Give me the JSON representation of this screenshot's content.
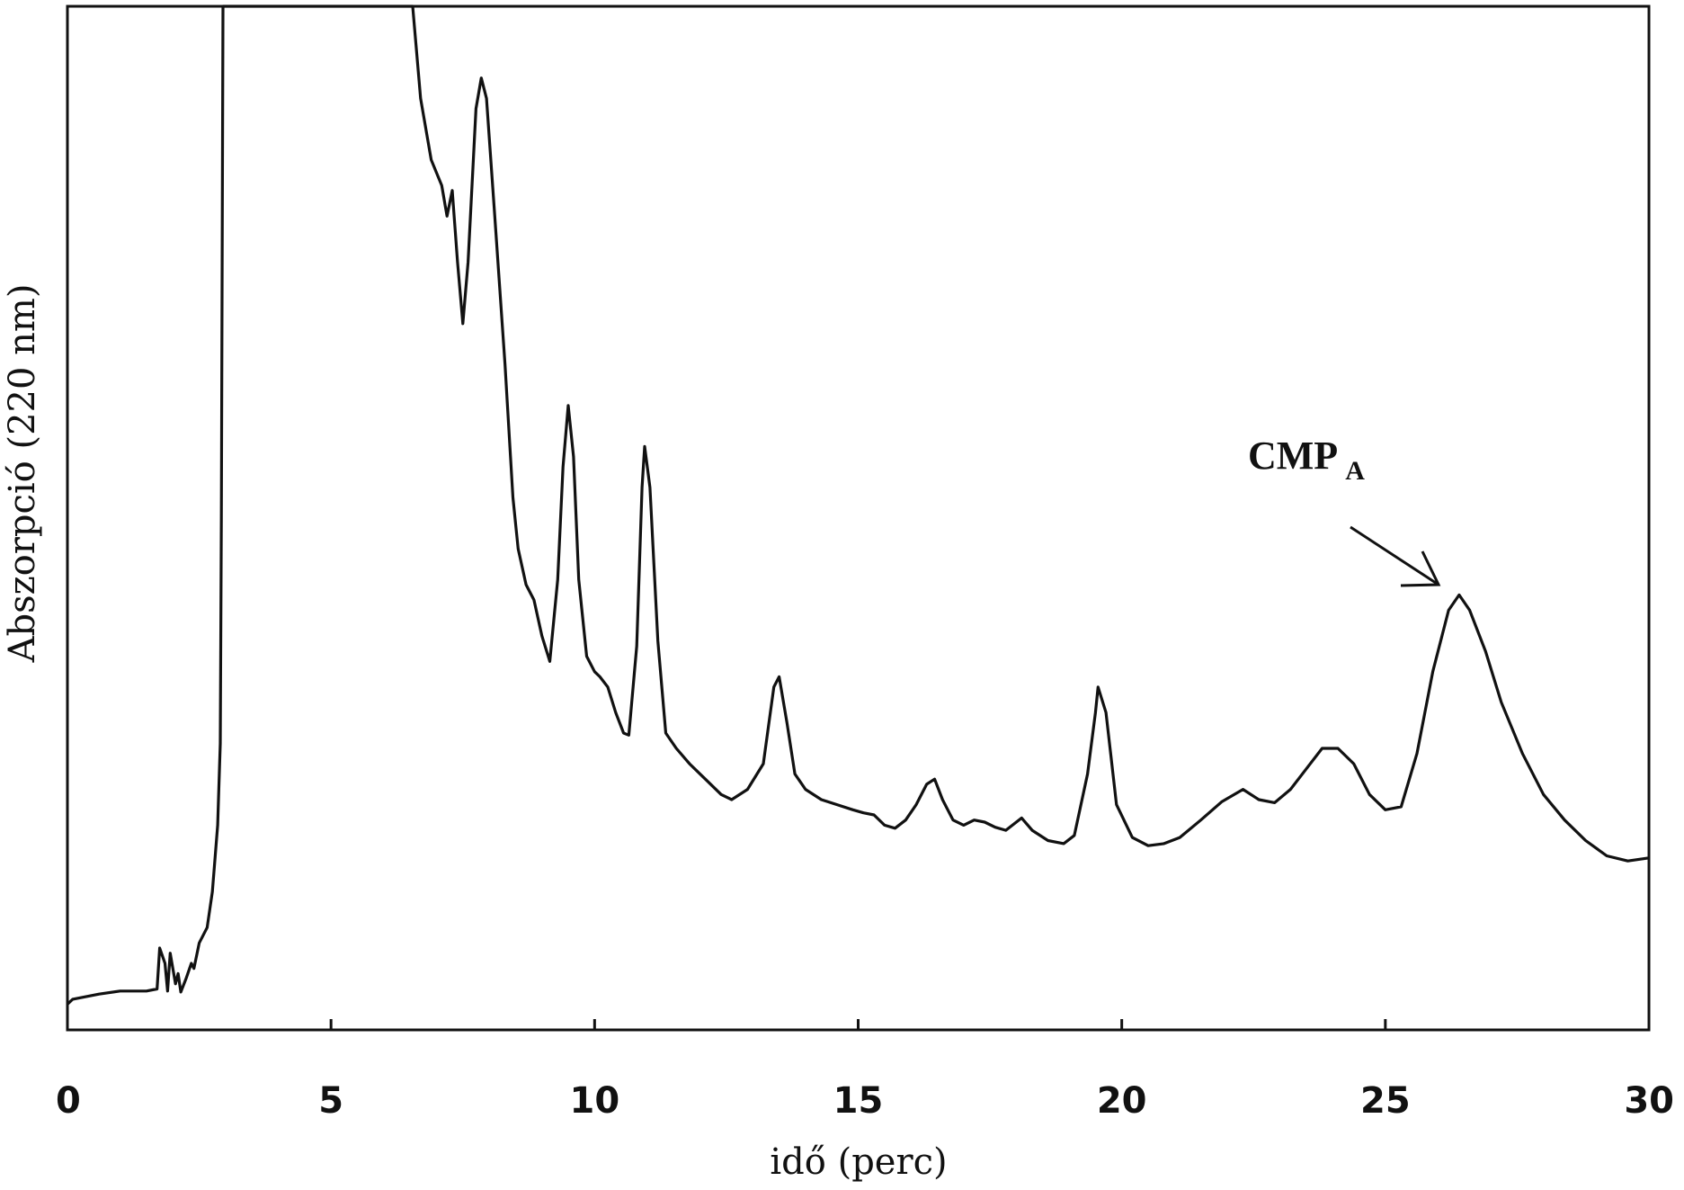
{
  "chart_data": {
    "type": "line",
    "xlabel": "idő (perc)",
    "ylabel": "Abszorpció (220 nm)",
    "xlim": [
      0,
      30
    ],
    "ylim": [
      0,
      100
    ],
    "x_ticks": [
      "0",
      "5",
      "10",
      "15",
      "20",
      "25",
      "30"
    ],
    "y_ticks_shown": false,
    "grid": false,
    "series": [
      {
        "points": [
          [
            0,
            2.5
          ],
          [
            0.1,
            3.0
          ],
          [
            0.6,
            3.5
          ],
          [
            1.0,
            3.8
          ],
          [
            1.5,
            3.8
          ],
          [
            1.7,
            4.0
          ],
          [
            1.75,
            8.0
          ],
          [
            1.85,
            6.5
          ],
          [
            1.9,
            3.8
          ],
          [
            1.95,
            7.5
          ],
          [
            2.05,
            4.5
          ],
          [
            2.1,
            5.5
          ],
          [
            2.15,
            3.7
          ],
          [
            2.25,
            5.0
          ],
          [
            2.35,
            6.5
          ],
          [
            2.4,
            6.0
          ],
          [
            2.5,
            8.5
          ],
          [
            2.65,
            10.0
          ],
          [
            2.75,
            13.5
          ],
          [
            2.85,
            20.0
          ],
          [
            2.9,
            28.0
          ],
          [
            2.92,
            50.0
          ],
          [
            2.95,
            100.0
          ],
          [
            6.55,
            100.0
          ],
          [
            6.7,
            91.0
          ],
          [
            6.9,
            85.0
          ],
          [
            7.1,
            82.5
          ],
          [
            7.2,
            79.5
          ],
          [
            7.3,
            82.0
          ],
          [
            7.4,
            75.0
          ],
          [
            7.5,
            69.0
          ],
          [
            7.6,
            75.0
          ],
          [
            7.75,
            90.0
          ],
          [
            7.85,
            93.0
          ],
          [
            7.95,
            91.0
          ],
          [
            8.1,
            80.0
          ],
          [
            8.3,
            65.0
          ],
          [
            8.45,
            52.0
          ],
          [
            8.55,
            47.0
          ],
          [
            8.7,
            43.5
          ],
          [
            8.85,
            42.0
          ],
          [
            9.0,
            38.5
          ],
          [
            9.15,
            36.0
          ],
          [
            9.3,
            44.0
          ],
          [
            9.4,
            55.0
          ],
          [
            9.5,
            61.0
          ],
          [
            9.6,
            56.0
          ],
          [
            9.7,
            44.0
          ],
          [
            9.85,
            36.5
          ],
          [
            10.0,
            35.0
          ],
          [
            10.1,
            34.5
          ],
          [
            10.25,
            33.5
          ],
          [
            10.4,
            31.0
          ],
          [
            10.55,
            29.0
          ],
          [
            10.65,
            28.8
          ],
          [
            10.8,
            37.5
          ],
          [
            10.9,
            53.0
          ],
          [
            10.95,
            57.0
          ],
          [
            11.05,
            53.0
          ],
          [
            11.2,
            38.0
          ],
          [
            11.35,
            29.0
          ],
          [
            11.55,
            27.5
          ],
          [
            11.8,
            26.0
          ],
          [
            12.1,
            24.5
          ],
          [
            12.4,
            23.0
          ],
          [
            12.6,
            22.5
          ],
          [
            12.9,
            23.5
          ],
          [
            13.2,
            26.0
          ],
          [
            13.4,
            33.5
          ],
          [
            13.5,
            34.5
          ],
          [
            13.65,
            30.0
          ],
          [
            13.8,
            25.0
          ],
          [
            14.0,
            23.5
          ],
          [
            14.3,
            22.5
          ],
          [
            14.6,
            22.0
          ],
          [
            14.9,
            21.5
          ],
          [
            15.1,
            21.2
          ],
          [
            15.3,
            21.0
          ],
          [
            15.5,
            20.0
          ],
          [
            15.7,
            19.7
          ],
          [
            15.9,
            20.5
          ],
          [
            16.1,
            22.0
          ],
          [
            16.3,
            24.0
          ],
          [
            16.45,
            24.5
          ],
          [
            16.6,
            22.5
          ],
          [
            16.8,
            20.5
          ],
          [
            17.0,
            20.0
          ],
          [
            17.2,
            20.5
          ],
          [
            17.4,
            20.3
          ],
          [
            17.6,
            19.8
          ],
          [
            17.8,
            19.5
          ],
          [
            18.1,
            20.7
          ],
          [
            18.3,
            19.5
          ],
          [
            18.6,
            18.5
          ],
          [
            18.9,
            18.2
          ],
          [
            19.1,
            19.0
          ],
          [
            19.35,
            25.0
          ],
          [
            19.5,
            31.0
          ],
          [
            19.55,
            33.5
          ],
          [
            19.7,
            31.0
          ],
          [
            19.9,
            22.0
          ],
          [
            20.2,
            18.8
          ],
          [
            20.5,
            18.0
          ],
          [
            20.8,
            18.2
          ],
          [
            21.1,
            18.8
          ],
          [
            21.5,
            20.5
          ],
          [
            21.9,
            22.3
          ],
          [
            22.3,
            23.5
          ],
          [
            22.6,
            22.5
          ],
          [
            22.9,
            22.2
          ],
          [
            23.2,
            23.5
          ],
          [
            23.5,
            25.5
          ],
          [
            23.8,
            27.5
          ],
          [
            24.1,
            27.5
          ],
          [
            24.4,
            26.0
          ],
          [
            24.7,
            23.0
          ],
          [
            25.0,
            21.5
          ],
          [
            25.3,
            21.8
          ],
          [
            25.6,
            27.0
          ],
          [
            25.9,
            35.0
          ],
          [
            26.2,
            41.0
          ],
          [
            26.4,
            42.5
          ],
          [
            26.6,
            41.0
          ],
          [
            26.9,
            37.0
          ],
          [
            27.2,
            32.0
          ],
          [
            27.6,
            27.0
          ],
          [
            28.0,
            23.0
          ],
          [
            28.4,
            20.5
          ],
          [
            28.8,
            18.5
          ],
          [
            29.2,
            17.0
          ],
          [
            29.6,
            16.5
          ],
          [
            30.0,
            16.8
          ]
        ]
      }
    ],
    "annotations": [
      {
        "text": "CMP",
        "subscript": "A",
        "x": 26.3,
        "y": 42.5
      }
    ]
  }
}
